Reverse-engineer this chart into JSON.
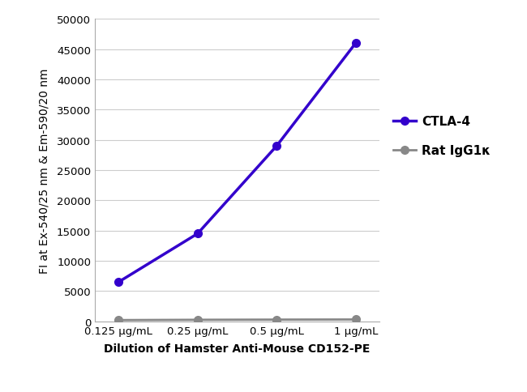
{
  "x_labels": [
    "0.125 μg/mL",
    "0.25 μg/mL",
    "0.5 μg/mL",
    "1 μg/mL"
  ],
  "x_positions": [
    0,
    1,
    2,
    3
  ],
  "ctla4_values": [
    6500,
    14500,
    29000,
    46000
  ],
  "rat_igg_values": [
    200,
    250,
    280,
    300
  ],
  "ctla4_color": "#3300CC",
  "rat_igg_color": "#888888",
  "ctla4_label": "CTLA-4",
  "rat_igg_label": "Rat IgG1κ",
  "ylabel": "FI at Ex-540/25 nm & Em-590/20 nm",
  "xlabel": "Dilution of Hamster Anti-Mouse CD152-PE",
  "ylim": [
    0,
    50000
  ],
  "yticks": [
    0,
    5000,
    10000,
    15000,
    20000,
    25000,
    30000,
    35000,
    40000,
    45000,
    50000
  ],
  "background_color": "#ffffff",
  "grid_color": "#cccccc",
  "axis_fontsize": 10,
  "legend_fontsize": 10
}
